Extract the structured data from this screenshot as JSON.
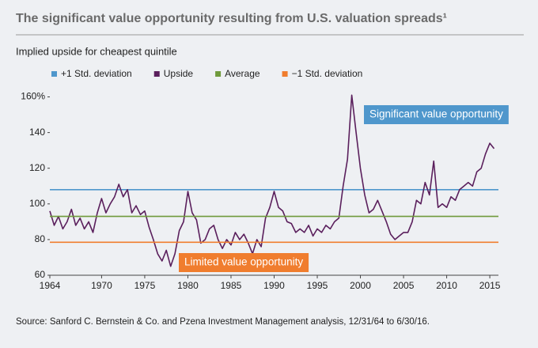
{
  "chart_data": {
    "type": "line",
    "title": "The significant value opportunity resulting from U.S. valuation spreads¹",
    "subtitle": "Implied upside for cheapest quintile",
    "source": "Source: Sanford C. Bernstein & Co. and Pzena Investment Management analysis, 12/31/64 to 6/30/16.",
    "xlim": [
      1964,
      2016
    ],
    "xticks": [
      1964,
      1970,
      1975,
      1980,
      1985,
      1990,
      1995,
      2000,
      2005,
      2010,
      2015
    ],
    "ylim": [
      60,
      162
    ],
    "yticks": [
      60,
      80,
      100,
      120,
      140,
      {
        "value": 160,
        "label": "160%"
      }
    ],
    "x": [
      1964,
      1964.5,
      1965,
      1965.5,
      1966,
      1966.5,
      1967,
      1967.5,
      1968,
      1968.5,
      1969,
      1969.5,
      1970,
      1970.5,
      1971,
      1971.5,
      1972,
      1972.5,
      1973,
      1973.5,
      1974,
      1974.5,
      1975,
      1975.5,
      1976,
      1976.5,
      1977,
      1977.5,
      1978,
      1978.5,
      1979,
      1979.5,
      1980,
      1980.5,
      1981,
      1981.5,
      1982,
      1982.5,
      1983,
      1983.5,
      1984,
      1984.5,
      1985,
      1985.5,
      1986,
      1986.5,
      1987,
      1987.5,
      1988,
      1988.5,
      1989,
      1989.5,
      1990,
      1990.5,
      1991,
      1991.5,
      1992,
      1992.5,
      1993,
      1993.5,
      1994,
      1994.5,
      1995,
      1995.5,
      1996,
      1996.5,
      1997,
      1997.5,
      1998,
      1998.5,
      1999,
      1999.5,
      2000,
      2000.5,
      2001,
      2001.5,
      2002,
      2002.5,
      2003,
      2003.5,
      2004,
      2004.5,
      2005,
      2005.5,
      2006,
      2006.5,
      2007,
      2007.5,
      2008,
      2008.5,
      2009,
      2009.5,
      2010,
      2010.5,
      2011,
      2011.5,
      2012,
      2012.5,
      2013,
      2013.5,
      2014,
      2014.5,
      2015,
      2015.5
    ],
    "series": [
      {
        "name": "+1 Std. deviation",
        "color": "#4f97cc",
        "value": 108
      },
      {
        "name": "Upside",
        "color": "#5a1f5c",
        "values": [
          96,
          88,
          93,
          86,
          90,
          97,
          88,
          92,
          86,
          90,
          84,
          95,
          103,
          95,
          100,
          104,
          111,
          104,
          108,
          95,
          99,
          94,
          96,
          87,
          80,
          72,
          68,
          74,
          65,
          72,
          85,
          90,
          107,
          95,
          91,
          78,
          80,
          86,
          88,
          80,
          75,
          80,
          77,
          84,
          80,
          83,
          78,
          72,
          80,
          76,
          92,
          98,
          107,
          98,
          96,
          90,
          89,
          84,
          86,
          84,
          88,
          82,
          86,
          84,
          88,
          86,
          90,
          92,
          110,
          125,
          161,
          140,
          120,
          105,
          95,
          97,
          102,
          96,
          90,
          83,
          80,
          82,
          84,
          84,
          90,
          102,
          100,
          112,
          105,
          124,
          98,
          100,
          98,
          104,
          102,
          108,
          110,
          112,
          110,
          118,
          120,
          128,
          134,
          131
        ]
      },
      {
        "name": "Average",
        "color": "#6f9a3b",
        "value": 93
      },
      {
        "name": "−1 Std. deviation",
        "color": "#f07d2e",
        "value": 78.5
      }
    ],
    "annotations": [
      {
        "text": "Significant value opportunity",
        "color": "#4f97cc"
      },
      {
        "text": "Limited value opportunity",
        "color": "#f07d2e"
      }
    ]
  }
}
